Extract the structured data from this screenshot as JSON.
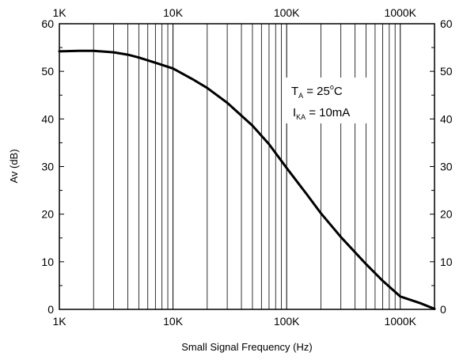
{
  "chart_data": {
    "type": "line",
    "title": "",
    "xlabel": "Small Signal Frequency (Hz)",
    "ylabel": "Av (dB)",
    "xscale": "log",
    "xlim": [
      1000,
      2000000
    ],
    "ylim": [
      0,
      60
    ],
    "grid": {
      "x_major": true,
      "x_minor": true,
      "y": false
    },
    "x_tick_values": [
      1000,
      10000,
      100000,
      1000000
    ],
    "x_tick_labels": [
      "1K",
      "10K",
      "100K",
      "1000K"
    ],
    "y_tick_values": [
      0,
      10,
      20,
      30,
      40,
      50,
      60
    ],
    "y_tick_labels": [
      "0",
      "10",
      "20",
      "30",
      "40",
      "50",
      "60"
    ],
    "series": [
      {
        "color": "#000000",
        "x": [
          1000,
          1500,
          2000,
          3000,
          4000,
          5000,
          7000,
          10000,
          15000,
          20000,
          30000,
          50000,
          70000,
          100000,
          150000,
          200000,
          300000,
          500000,
          700000,
          1000000,
          1500000,
          2000000
        ],
        "y": [
          54.2,
          54.3,
          54.3,
          54.0,
          53.5,
          52.9,
          51.8,
          50.6,
          48.3,
          46.5,
          43.4,
          38.6,
          34.7,
          29.7,
          24.2,
          20.2,
          15.2,
          9.5,
          6.0,
          2.7,
          1.3,
          0.1
        ]
      }
    ],
    "annotations": {
      "ta_main": "T",
      "ta_sub": "A",
      "ta_rest": "= 25",
      "ta_sup": "o",
      "ta_unit": "C",
      "ika_main": "I",
      "ika_sub": "KA",
      "ika_rest": "= 10mA"
    }
  }
}
